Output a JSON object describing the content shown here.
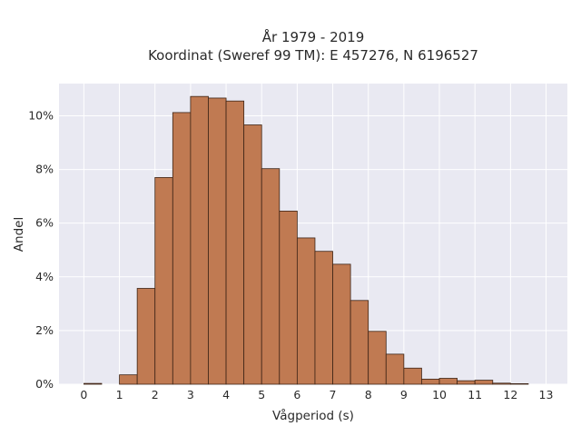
{
  "chart_data": {
    "type": "bar",
    "title": "År 1979 - 2019",
    "subtitle": "Koordinat (Sweref 99 TM): E 457276, N 6196527",
    "xlabel": "Vågperiod (s)",
    "ylabel": "Andel",
    "bin_width": 0.5,
    "bin_starts": [
      0,
      0.5,
      1,
      1.5,
      2,
      2.5,
      3,
      3.5,
      4,
      4.5,
      5,
      5.5,
      6,
      6.5,
      7,
      7.5,
      8,
      8.5,
      9,
      9.5,
      10,
      10.5,
      11,
      11.5,
      12,
      12.5
    ],
    "values": [
      0.0003,
      0,
      0.0035,
      0.0357,
      0.077,
      0.1012,
      0.1072,
      0.1066,
      0.1055,
      0.0966,
      0.0803,
      0.0645,
      0.0545,
      0.0495,
      0.0447,
      0.0312,
      0.0197,
      0.0112,
      0.006,
      0.0019,
      0.0022,
      0.0013,
      0.0015,
      0.0004,
      0.0002,
      0
    ],
    "xlim": [
      -0.7,
      13.6
    ],
    "ylim": [
      0,
      0.112
    ],
    "x_ticks": [
      0,
      1,
      2,
      3,
      4,
      5,
      6,
      7,
      8,
      9,
      10,
      11,
      12,
      13
    ],
    "x_tick_labels": [
      "0",
      "1",
      "2",
      "3",
      "4",
      "5",
      "6",
      "7",
      "8",
      "9",
      "10",
      "11",
      "12",
      "13"
    ],
    "y_ticks": [
      0,
      0.02,
      0.04,
      0.06,
      0.08,
      0.1
    ],
    "y_tick_labels": [
      "0%",
      "2%",
      "4%",
      "6%",
      "8%",
      "10%"
    ],
    "grid": true,
    "colors": {
      "bar_fill": "#c07a52",
      "bar_edge": "#3d2416",
      "plot_background": "#e9e9f2",
      "grid": "#ffffff"
    }
  }
}
